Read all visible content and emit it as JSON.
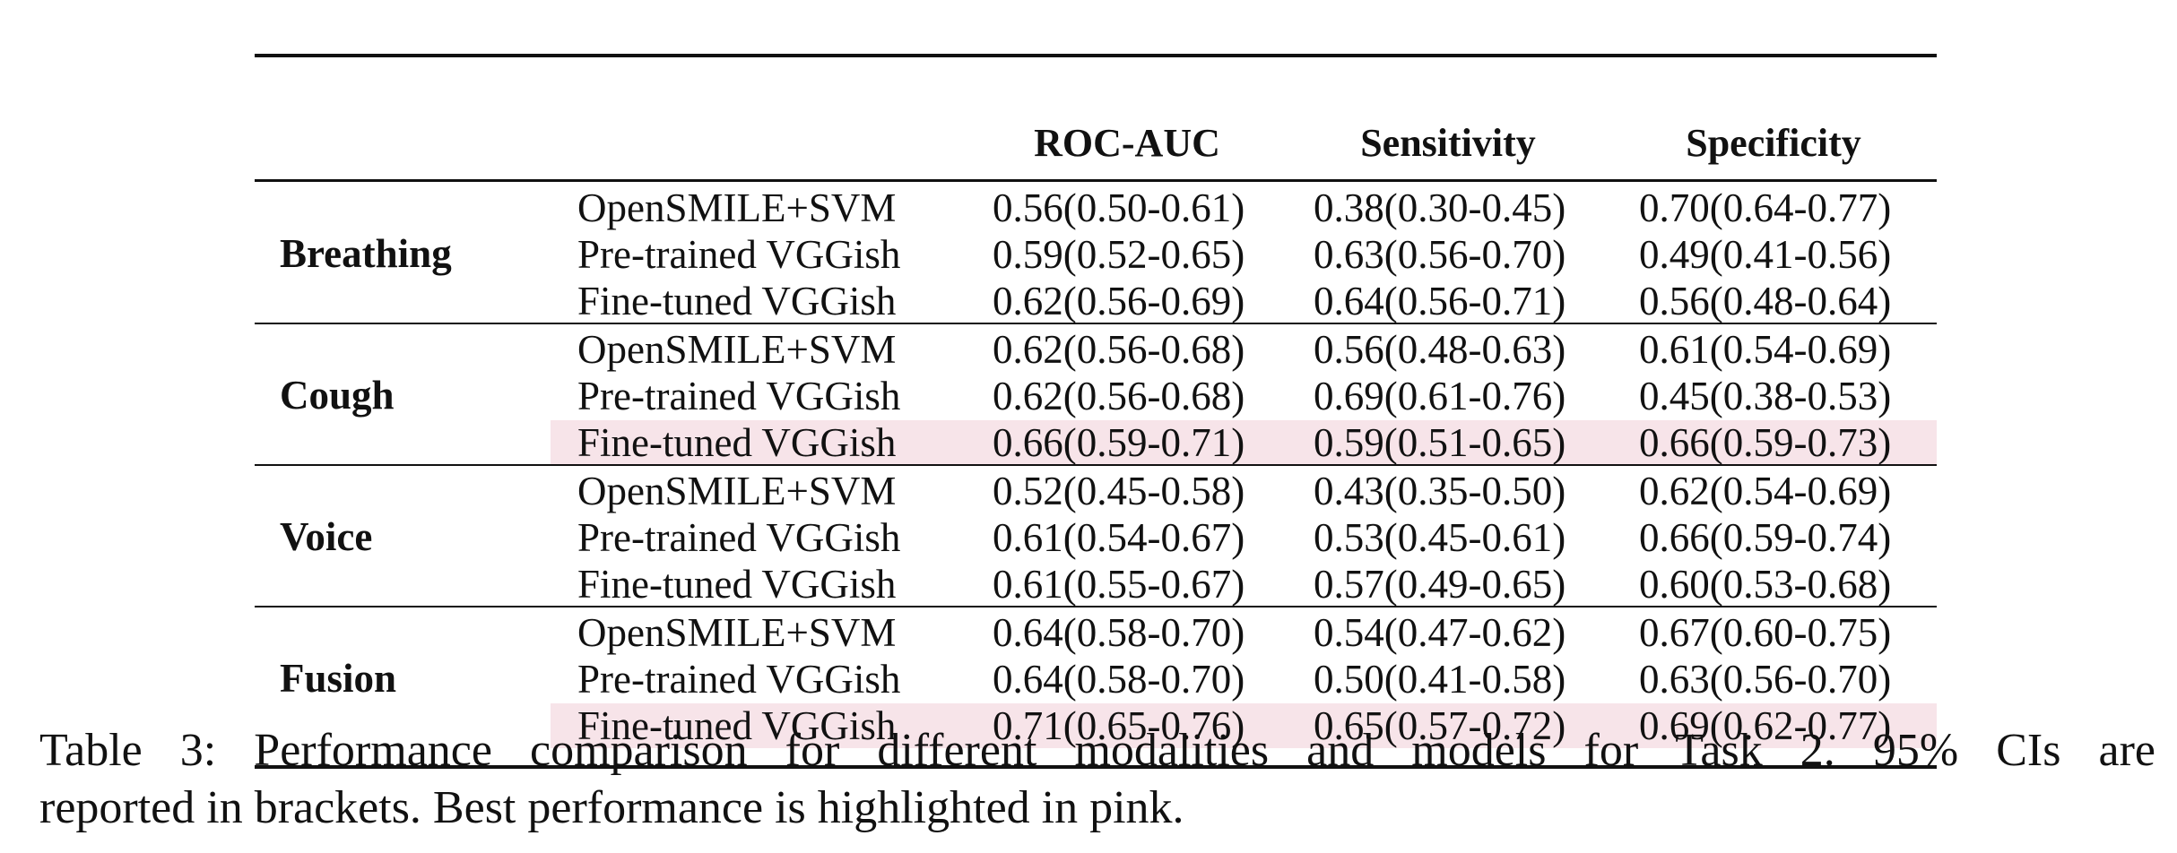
{
  "table": {
    "columns": [
      "ROC-AUC",
      "Sensitivity",
      "Specificity"
    ],
    "groups": [
      {
        "label": "Breathing",
        "rows": [
          {
            "model": "OpenSMILE+SVM",
            "auc": "0.56(0.50-0.61)",
            "sensitivity": "0.38(0.30-0.45)",
            "specificity": "0.70(0.64-0.77)",
            "highlight": false
          },
          {
            "model": "Pre-trained VGGish",
            "auc": "0.59(0.52-0.65)",
            "sensitivity": "0.63(0.56-0.70)",
            "specificity": "0.49(0.41-0.56)",
            "highlight": false
          },
          {
            "model": "Fine-tuned VGGish",
            "auc": "0.62(0.56-0.69)",
            "sensitivity": "0.64(0.56-0.71)",
            "specificity": "0.56(0.48-0.64)",
            "highlight": false
          }
        ]
      },
      {
        "label": "Cough",
        "rows": [
          {
            "model": "OpenSMILE+SVM",
            "auc": "0.62(0.56-0.68)",
            "sensitivity": "0.56(0.48-0.63)",
            "specificity": "0.61(0.54-0.69)",
            "highlight": false
          },
          {
            "model": "Pre-trained VGGish",
            "auc": "0.62(0.56-0.68)",
            "sensitivity": "0.69(0.61-0.76)",
            "specificity": "0.45(0.38-0.53)",
            "highlight": false
          },
          {
            "model": "Fine-tuned VGGish",
            "auc": "0.66(0.59-0.71)",
            "sensitivity": "0.59(0.51-0.65)",
            "specificity": "0.66(0.59-0.73)",
            "highlight": true
          }
        ]
      },
      {
        "label": "Voice",
        "rows": [
          {
            "model": "OpenSMILE+SVM",
            "auc": "0.52(0.45-0.58)",
            "sensitivity": "0.43(0.35-0.50)",
            "specificity": "0.62(0.54-0.69)",
            "highlight": false
          },
          {
            "model": "Pre-trained VGGish",
            "auc": "0.61(0.54-0.67)",
            "sensitivity": "0.53(0.45-0.61)",
            "specificity": "0.66(0.59-0.74)",
            "highlight": false
          },
          {
            "model": "Fine-tuned VGGish",
            "auc": "0.61(0.55-0.67)",
            "sensitivity": "0.57(0.49-0.65)",
            "specificity": "0.60(0.53-0.68)",
            "highlight": false
          }
        ]
      },
      {
        "label": "Fusion",
        "rows": [
          {
            "model": "OpenSMILE+SVM",
            "auc": "0.64(0.58-0.70)",
            "sensitivity": "0.54(0.47-0.62)",
            "specificity": "0.67(0.60-0.75)",
            "highlight": false
          },
          {
            "model": "Pre-trained VGGish",
            "auc": "0.64(0.58-0.70)",
            "sensitivity": "0.50(0.41-0.58)",
            "specificity": "0.63(0.56-0.70)",
            "highlight": false
          },
          {
            "model": "Fine-tuned VGGish",
            "auc": "0.71(0.65-0.76)",
            "sensitivity": "0.65(0.57-0.72)",
            "specificity": "0.69(0.62-0.77)",
            "highlight": true
          }
        ]
      }
    ]
  },
  "caption": {
    "line1": "Table 3: Performance comparison for different modalities and models for Task 2. 95% CIs are",
    "line2": "reported in brackets. Best performance is highlighted in pink."
  },
  "colors": {
    "highlight": "#f7e4e9",
    "rule": "#111111"
  }
}
